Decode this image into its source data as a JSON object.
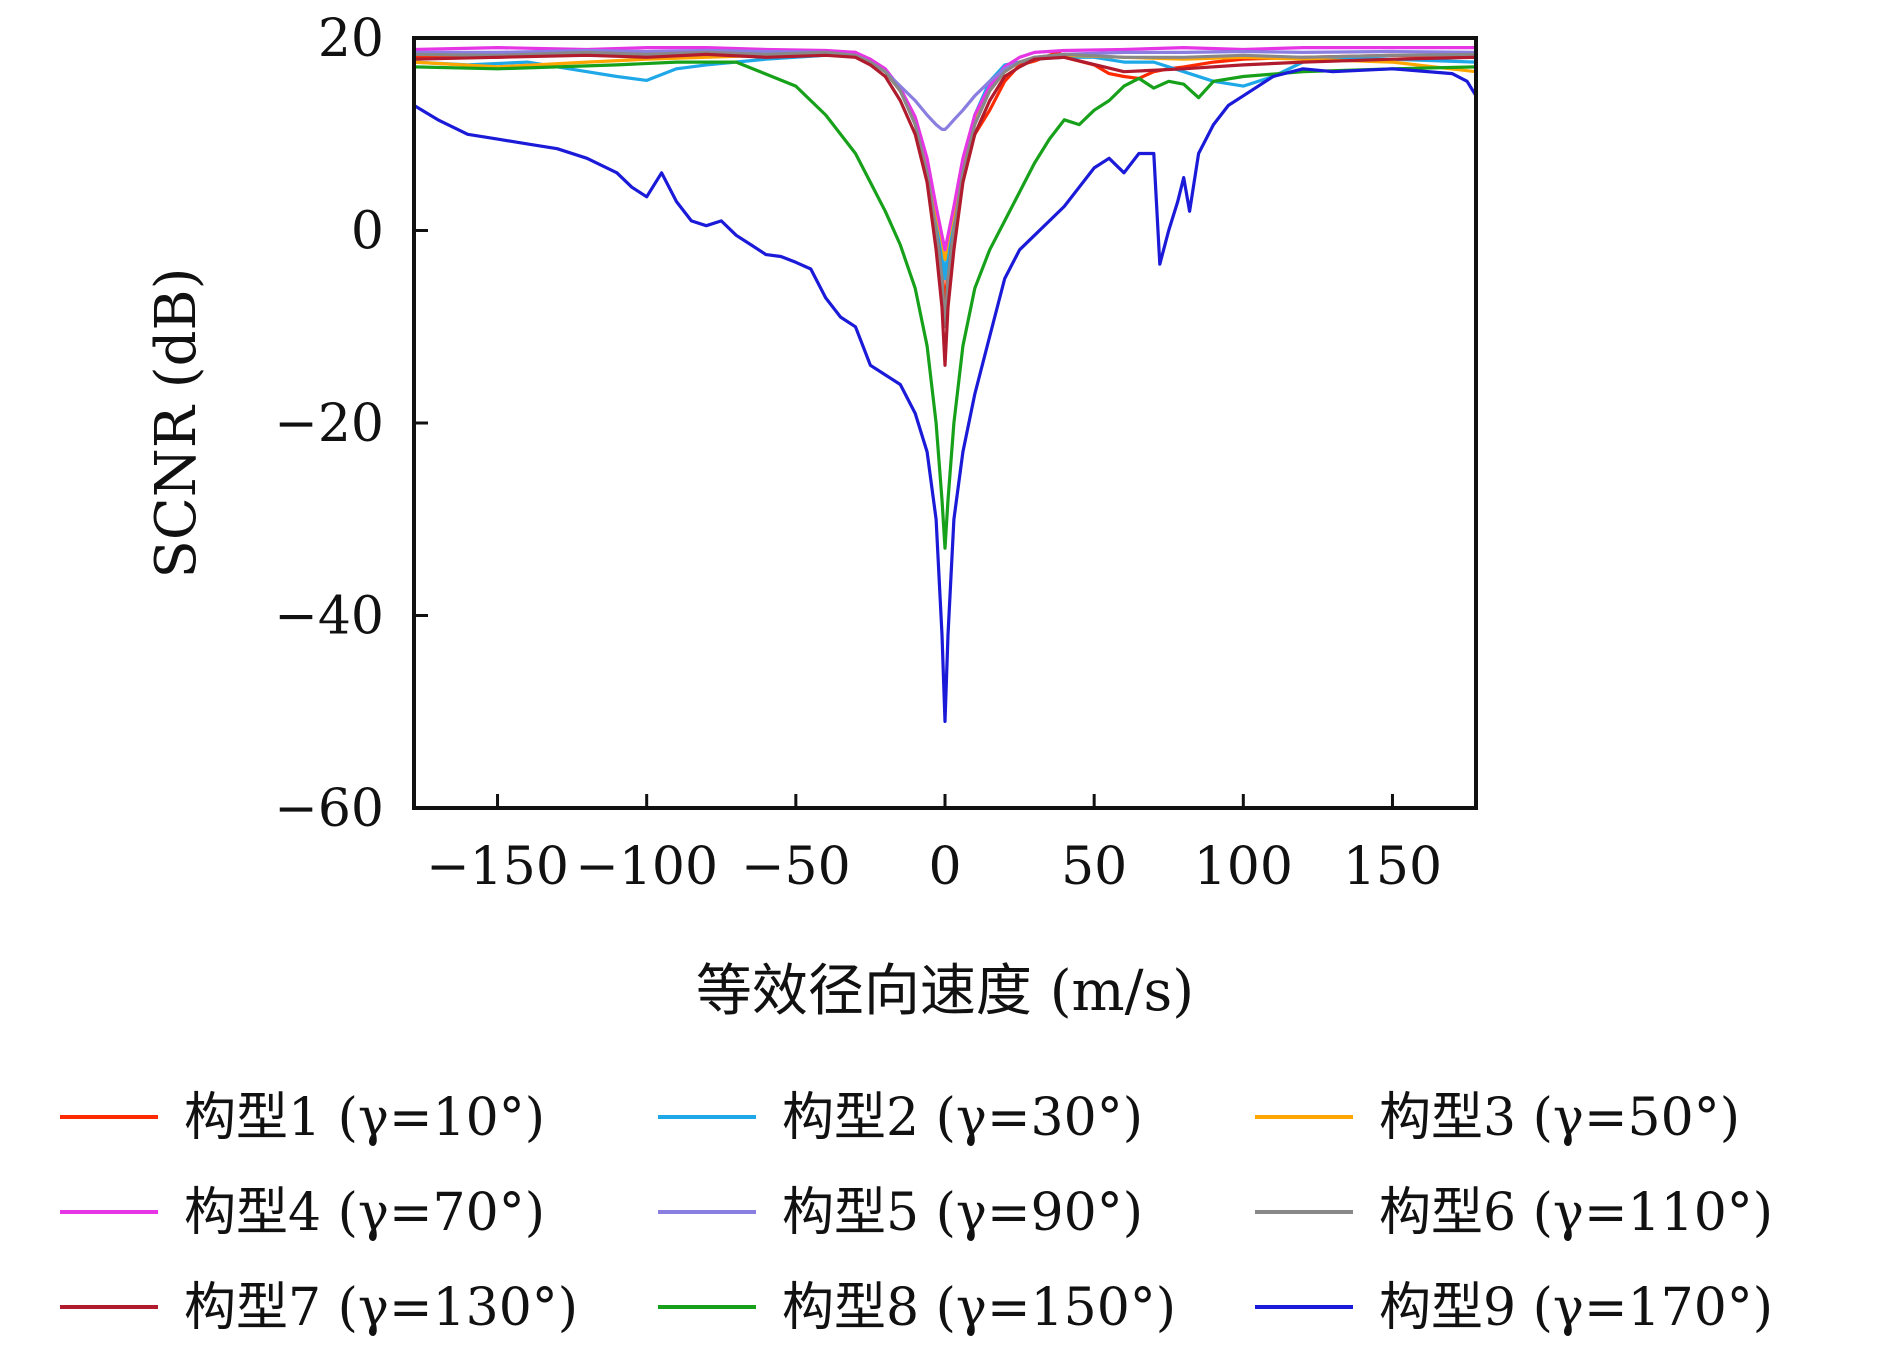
{
  "chart_data": {
    "type": "line",
    "xlabel": "等效径向速度 (m/s)",
    "ylabel": "SCNR (dB)",
    "xlim": [
      -178,
      178
    ],
    "ylim": [
      -60,
      20
    ],
    "xticks": [
      -150,
      -100,
      -50,
      0,
      50,
      100,
      150
    ],
    "yticks": [
      20,
      0,
      -20,
      -40,
      -60
    ],
    "xtick_labels": [
      "−150",
      "−100",
      "−50",
      "0",
      "50",
      "100",
      "150"
    ],
    "ytick_labels": [
      "20",
      "0",
      "−20",
      "−40",
      "−60"
    ],
    "legend_position": "bottom",
    "grid": false,
    "series": [
      {
        "name": "构型1 (γ=10°)",
        "color": "#ff2a00",
        "x": [
          -178,
          -150,
          -120,
          -100,
          -80,
          -60,
          -40,
          -30,
          -25,
          -20,
          -15,
          -10,
          -6,
          -3,
          -1,
          0,
          1,
          3,
          6,
          10,
          15,
          20,
          25,
          30,
          35,
          38,
          40,
          45,
          50,
          55,
          60,
          65,
          70,
          75,
          80,
          90,
          100,
          120,
          150,
          178
        ],
        "y": [
          18,
          18,
          18.4,
          18.2,
          18.6,
          18.3,
          18.4,
          18.5,
          17.5,
          16.5,
          14.5,
          11.5,
          7,
          1.5,
          -4,
          -8,
          -4,
          1.5,
          6,
          10,
          12.5,
          15.5,
          17.2,
          17.6,
          18.2,
          18.5,
          18,
          17.6,
          17.2,
          16.3,
          16,
          15.8,
          16.5,
          16.8,
          17,
          17.5,
          17.8,
          18,
          18.2,
          18
        ]
      },
      {
        "name": "构型2 (γ=30°)",
        "color": "#1ea8e8",
        "x": [
          -178,
          -160,
          -140,
          -120,
          -110,
          -100,
          -90,
          -80,
          -60,
          -40,
          -30,
          -25,
          -20,
          -15,
          -10,
          -6,
          -3,
          -1,
          0,
          1,
          3,
          6,
          10,
          15,
          20,
          25,
          30,
          40,
          50,
          60,
          70,
          80,
          90,
          100,
          110,
          120,
          130,
          150,
          178
        ],
        "y": [
          17.5,
          17.2,
          17.5,
          16.5,
          16,
          15.6,
          16.8,
          17.2,
          17.8,
          18.2,
          18.2,
          17.5,
          16.5,
          14.5,
          11.5,
          7,
          2,
          -2,
          -5,
          -2,
          2,
          7,
          12,
          15.5,
          17.2,
          17.5,
          17.8,
          18,
          18,
          17.5,
          17.5,
          16.5,
          15.5,
          15,
          16,
          17.5,
          18,
          17.8,
          17.5
        ]
      },
      {
        "name": "构型3 (γ=50°)",
        "color": "#ffa500",
        "x": [
          -178,
          -150,
          -120,
          -100,
          -80,
          -60,
          -40,
          -30,
          -25,
          -20,
          -15,
          -10,
          -6,
          -3,
          -1,
          0,
          1,
          3,
          6,
          10,
          15,
          20,
          25,
          30,
          40,
          60,
          80,
          100,
          120,
          150,
          178
        ],
        "y": [
          17.5,
          17,
          17.5,
          17.8,
          18,
          18.2,
          18.3,
          18.2,
          17.5,
          16.5,
          14.5,
          11.5,
          7,
          2,
          -1,
          -3,
          -1,
          2,
          7,
          11.5,
          14.5,
          16.5,
          17.5,
          18,
          18.2,
          18,
          17.8,
          18,
          17.8,
          17.5,
          16.5
        ]
      },
      {
        "name": "构型4 (γ=70°)",
        "color": "#e535e5",
        "x": [
          -178,
          -150,
          -120,
          -100,
          -80,
          -60,
          -40,
          -30,
          -25,
          -20,
          -15,
          -10,
          -6,
          -3,
          -1,
          0,
          1,
          3,
          6,
          10,
          15,
          20,
          25,
          30,
          40,
          60,
          80,
          100,
          120,
          150,
          178
        ],
        "y": [
          18.8,
          19,
          18.8,
          19,
          19,
          18.8,
          18.7,
          18.5,
          17.8,
          16.8,
          14.8,
          11.8,
          7.5,
          2.5,
          -0.5,
          -2,
          -0.5,
          2.5,
          7.5,
          12,
          15,
          17,
          18,
          18.5,
          18.7,
          18.8,
          19,
          18.8,
          19,
          19,
          19
        ]
      },
      {
        "name": "构型5 (γ=90°)",
        "color": "#8a7ee0",
        "x": [
          -178,
          -150,
          -120,
          -100,
          -80,
          -60,
          -40,
          -30,
          -25,
          -20,
          -15,
          -10,
          -6,
          -3,
          -1,
          0,
          1,
          3,
          6,
          10,
          15,
          20,
          25,
          30,
          40,
          60,
          80,
          100,
          120,
          150,
          178
        ],
        "y": [
          18.5,
          18.5,
          18.7,
          18.6,
          18.7,
          18.6,
          18.5,
          18.2,
          17.5,
          16.5,
          15,
          13.5,
          12,
          11,
          10.5,
          10.5,
          10.8,
          11.5,
          12.5,
          14,
          15.5,
          16.8,
          17.5,
          18,
          18.3,
          18.5,
          18.5,
          18.6,
          18.5,
          18.6,
          18.5
        ]
      },
      {
        "name": "构型6 (γ=110°)",
        "color": "#888888",
        "x": [
          -178,
          -150,
          -120,
          -100,
          -80,
          -60,
          -40,
          -30,
          -25,
          -20,
          -15,
          -10,
          -6,
          -3,
          -1,
          0,
          1,
          3,
          6,
          10,
          15,
          20,
          25,
          30,
          40,
          60,
          80,
          100,
          120,
          150,
          178
        ],
        "y": [
          18.3,
          18.2,
          18.5,
          18.3,
          18.5,
          18.3,
          18.5,
          18.2,
          17.5,
          16.5,
          14.5,
          11,
          6,
          0,
          -5,
          -10,
          -5,
          0,
          6,
          11,
          14.5,
          16.5,
          17.5,
          18,
          18.3,
          18,
          18,
          18.2,
          18,
          18.2,
          18.3
        ]
      },
      {
        "name": "构型7 (γ=130°)",
        "color": "#b01c2e",
        "x": [
          -178,
          -150,
          -120,
          -100,
          -80,
          -60,
          -40,
          -30,
          -25,
          -20,
          -15,
          -10,
          -6,
          -3,
          -1,
          0,
          1,
          3,
          6,
          10,
          15,
          20,
          25,
          30,
          40,
          60,
          80,
          100,
          120,
          150,
          178
        ],
        "y": [
          17.8,
          18,
          18.2,
          18,
          18.3,
          18,
          18.2,
          18,
          17.2,
          16,
          13.5,
          10,
          5,
          -2,
          -8,
          -14,
          -8,
          -2,
          5,
          10,
          13.5,
          16,
          17,
          17.8,
          18,
          16.5,
          16.8,
          17.2,
          17.5,
          17.8,
          18
        ]
      },
      {
        "name": "构型8 (γ=150°)",
        "color": "#17a11a",
        "x": [
          -178,
          -150,
          -130,
          -110,
          -90,
          -70,
          -50,
          -40,
          -30,
          -25,
          -20,
          -15,
          -10,
          -6,
          -3,
          -1,
          0,
          1,
          3,
          6,
          10,
          15,
          20,
          25,
          30,
          35,
          40,
          45,
          50,
          55,
          60,
          65,
          70,
          75,
          80,
          85,
          90,
          100,
          120,
          150,
          178
        ],
        "y": [
          17,
          16.8,
          17,
          17.2,
          17.5,
          17.5,
          15,
          12,
          8,
          5,
          2,
          -1.5,
          -6,
          -12,
          -20,
          -28,
          -33,
          -28,
          -20,
          -12,
          -6,
          -2,
          1,
          4,
          7,
          9.5,
          11.5,
          11,
          12.5,
          13.5,
          15,
          15.8,
          14.8,
          15.5,
          15.2,
          13.8,
          15.5,
          16,
          16.5,
          16.8,
          17
        ]
      },
      {
        "name": "构型9 (γ=170°)",
        "color": "#1a1ad8",
        "x": [
          -178,
          -170,
          -160,
          -150,
          -140,
          -130,
          -120,
          -110,
          -105,
          -100,
          -95,
          -90,
          -85,
          -80,
          -75,
          -70,
          -65,
          -60,
          -55,
          -50,
          -45,
          -40,
          -35,
          -30,
          -25,
          -20,
          -15,
          -10,
          -6,
          -3,
          -1,
          0,
          1,
          3,
          6,
          10,
          15,
          20,
          25,
          30,
          35,
          40,
          45,
          50,
          55,
          60,
          65,
          70,
          72,
          75,
          78,
          80,
          82,
          85,
          90,
          95,
          100,
          110,
          120,
          130,
          150,
          170,
          175,
          178
        ],
        "y": [
          13,
          11.5,
          10,
          9.5,
          9,
          8.5,
          7.5,
          6,
          4.5,
          3.5,
          6,
          3,
          1,
          0.5,
          1,
          -0.5,
          -1.5,
          -2.5,
          -2.7,
          -3.3,
          -4,
          -7,
          -9,
          -10,
          -14,
          -15,
          -16,
          -19,
          -23,
          -30,
          -42,
          -51,
          -42,
          -30,
          -23,
          -17,
          -11,
          -5,
          -2,
          -0.5,
          1,
          2.5,
          4.5,
          6.5,
          7.5,
          6,
          8,
          8,
          -3.5,
          0,
          3,
          5.5,
          2,
          8,
          11,
          13,
          14,
          16,
          16.8,
          16.5,
          16.8,
          16.3,
          15.5,
          14
        ]
      }
    ]
  }
}
